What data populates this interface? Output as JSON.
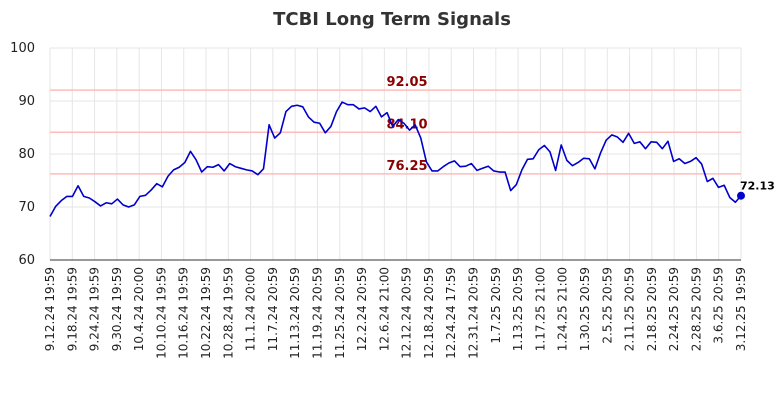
{
  "chart_data": {
    "type": "line",
    "title": "TCBI Long Term Signals",
    "xlabel": "",
    "ylabel": "",
    "ylim": [
      60,
      100
    ],
    "yticks": [
      "60",
      "70",
      "80",
      "90",
      "100"
    ],
    "grid": true,
    "colors": {
      "line": "#0000cc",
      "level": "#ffbbbb",
      "grid": "#e6e6e6",
      "level_text": "#8b0000"
    },
    "x_tick_labels": [
      "9.12.24 19:59",
      "9.18.24 19:59",
      "9.24.24 19:59",
      "9.30.24 19:59",
      "10.4.24 20:00",
      "10.10.24 19:59",
      "10.16.24 19:59",
      "10.22.24 19:59",
      "10.28.24 19:59",
      "11.1.24 20:00",
      "11.7.24 20:59",
      "11.13.24 20:59",
      "11.19.24 20:59",
      "11.25.24 20:59",
      "12.2.24 20:59",
      "12.6.24 21:00",
      "12.12.24 20:59",
      "12.18.24 20:59",
      "12.24.24 17:59",
      "12.31.24 20:59",
      "1.7.25 20:59",
      "1.13.25 20:59",
      "1.17.25 21:00",
      "1.24.25 21:00",
      "1.30.25 20:59",
      "2.5.25 20:59",
      "2.11.25 20:59",
      "2.18.25 20:59",
      "2.24.25 20:59",
      "2.28.25 20:59",
      "3.6.25 20:59",
      "3.12.25 19:59"
    ],
    "levels": [
      {
        "value": 92.05,
        "label": "92.05"
      },
      {
        "value": 84.1,
        "label": "84.10"
      },
      {
        "value": 76.25,
        "label": "76.25"
      }
    ],
    "last_point": {
      "value": 72.13,
      "label": "72.13"
    },
    "series": [
      {
        "values": [
          68.2,
          70.1,
          71.2,
          72.0,
          72.0,
          74.0,
          72.0,
          71.7,
          71.0,
          70.2,
          70.8,
          70.6,
          71.5,
          70.4,
          70.0,
          70.4,
          72.0,
          72.2,
          73.2,
          74.4,
          73.8,
          75.8,
          77.0,
          77.5,
          78.4,
          80.5,
          78.9,
          76.6,
          77.6,
          77.5,
          78.0,
          76.8,
          78.2,
          77.6,
          77.3,
          77.0,
          76.8,
          76.1,
          77.2,
          85.5,
          83.0,
          84.0,
          88.0,
          89.0,
          89.2,
          88.9,
          87.0,
          86.0,
          85.8,
          84.0,
          85.2,
          88.0,
          89.8,
          89.3,
          89.3,
          88.5,
          88.7,
          88.0,
          89.0,
          87.0,
          87.8,
          85.2,
          86.5,
          85.8,
          84.5,
          85.5,
          83.0,
          78.5,
          76.8,
          76.8,
          77.6,
          78.3,
          78.7,
          77.6,
          77.7,
          78.2,
          76.9,
          77.3,
          77.7,
          76.8,
          76.6,
          76.6,
          73.1,
          74.2,
          77.0,
          79.0,
          79.1,
          80.8,
          81.6,
          80.4,
          76.9,
          81.7,
          78.8,
          77.8,
          78.4,
          79.2,
          79.1,
          77.2,
          80.2,
          82.6,
          83.6,
          83.2,
          82.2,
          83.9,
          82.0,
          82.3,
          81.0,
          82.3,
          82.2,
          81.0,
          82.4,
          78.6,
          79.1,
          78.2,
          78.6,
          79.3,
          78.1,
          74.8,
          75.4,
          73.7,
          74.1,
          71.8,
          70.9,
          72.13
        ]
      }
    ]
  }
}
